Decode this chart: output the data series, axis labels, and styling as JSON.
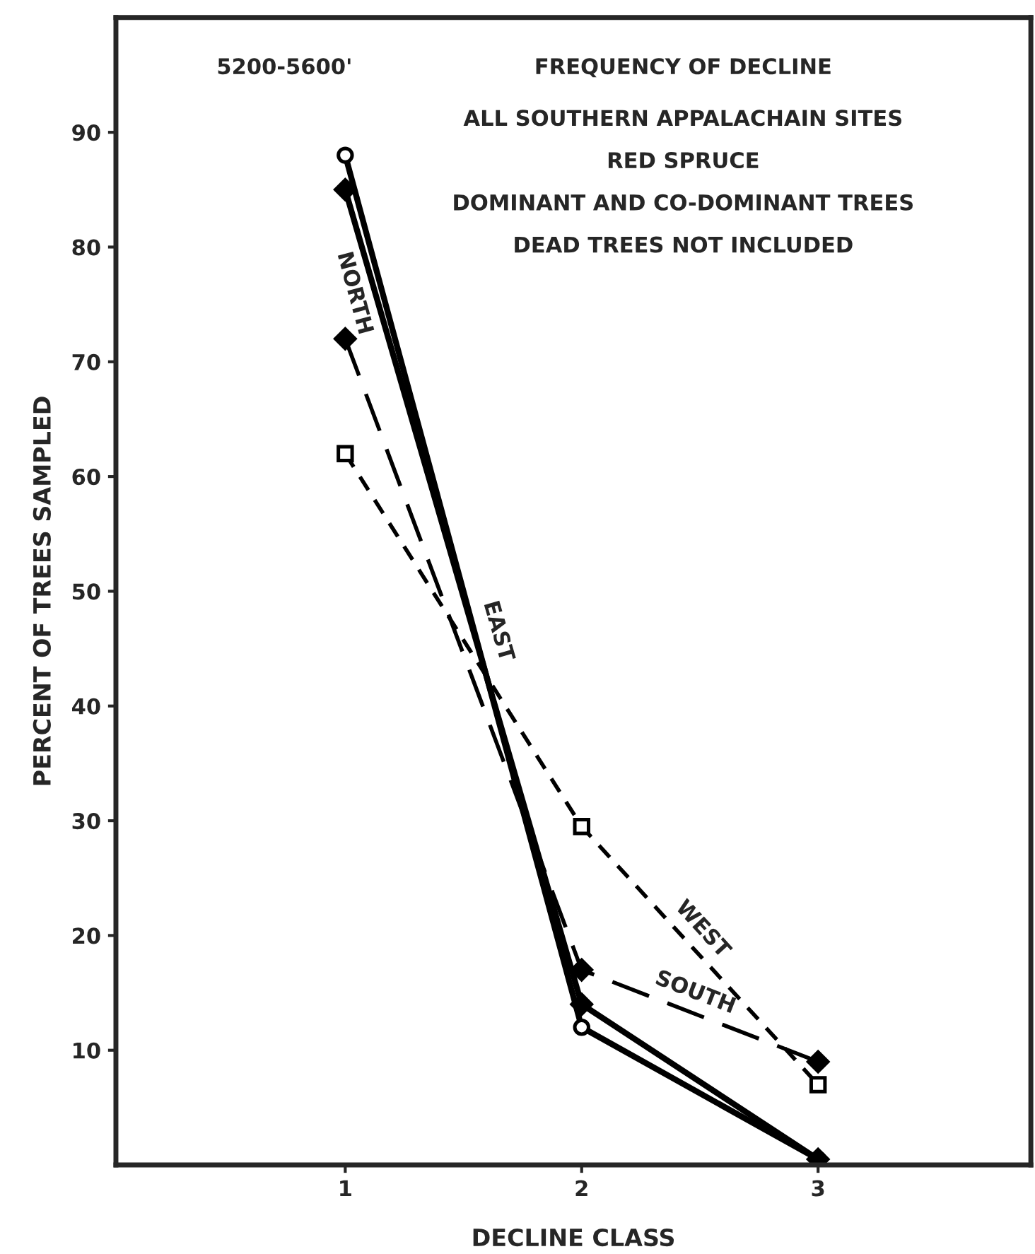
{
  "chart_data": {
    "type": "line",
    "title": "FREQUENCY OF DECLINE",
    "subtitle": "ALL SOUTHERN APPALACHAIN SITES\nRED SPRUCE\nDOMINANT AND CO-DOMINANT TREES\nDEAD TREES NOT INCLUDED",
    "annotations": [
      "5200-5600'"
    ],
    "xlabel": "DECLINE CLASS",
    "ylabel": "PERCENT OF TREES SAMPLED",
    "x": [
      1,
      2,
      3
    ],
    "series": [
      {
        "name": "NORTH",
        "color": "#000000",
        "values": [
          88,
          12,
          0.5
        ],
        "marker": "circle",
        "line_style": "solid"
      },
      {
        "name": "EAST",
        "color": "#000000",
        "values": [
          85,
          14,
          0.5
        ],
        "marker": "diamond",
        "line_style": "solid"
      },
      {
        "name": "SOUTH",
        "color": "#000000",
        "values": [
          72,
          17,
          9
        ],
        "marker": "diamond",
        "line_style": "dashed"
      },
      {
        "name": "WEST",
        "color": "#000000",
        "values": [
          62,
          29.5,
          7
        ],
        "marker": "square",
        "line_style": "dashed"
      }
    ],
    "xlim": [
      0.03,
      3.9
    ],
    "ylim": [
      0,
      100
    ],
    "xticks": [
      1,
      2,
      3
    ],
    "yticks": [
      10,
      20,
      30,
      40,
      50,
      60,
      70,
      80,
      90
    ],
    "grid": false,
    "legend": false
  }
}
